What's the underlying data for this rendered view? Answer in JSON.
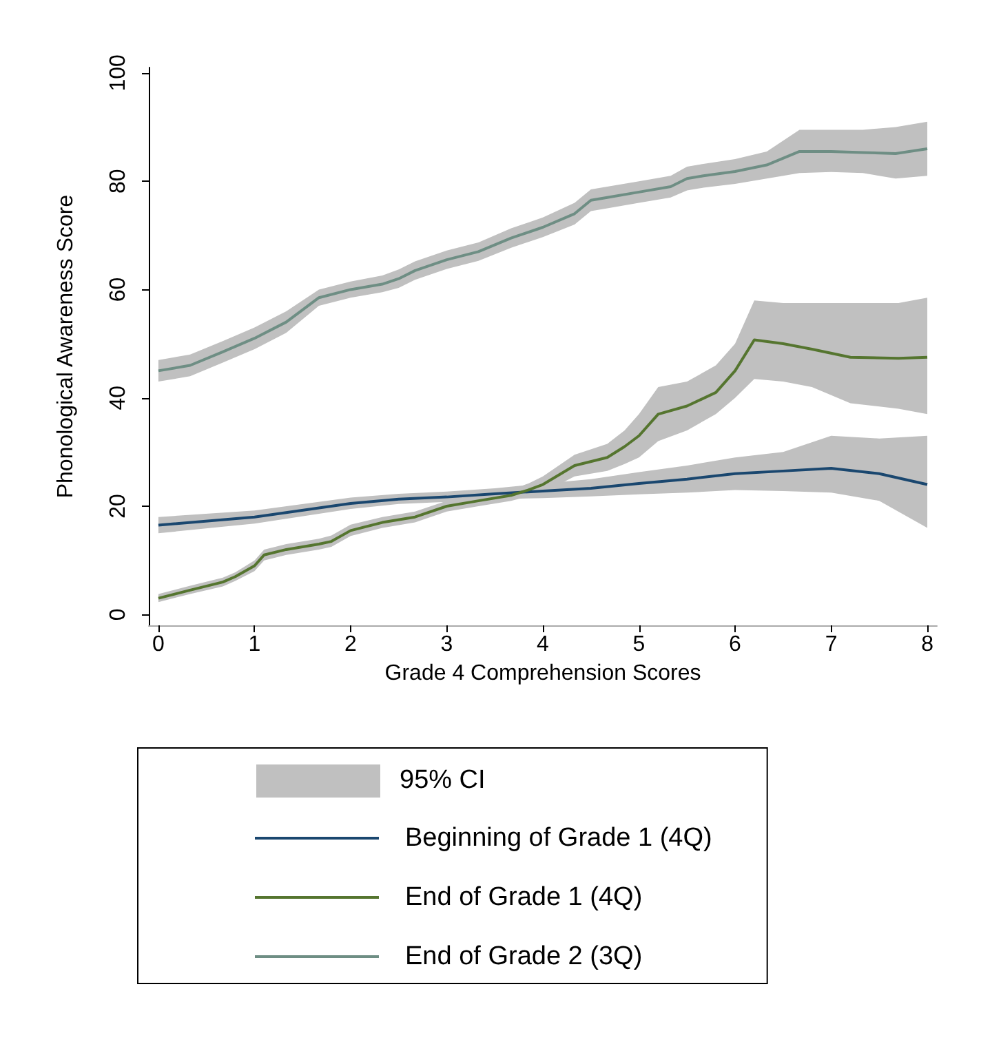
{
  "chart_data": {
    "type": "line",
    "xlabel": "Grade 4 Comprehension Scores",
    "ylabel": "Phonological Awareness Score",
    "xlim": [
      -0.1,
      8.1
    ],
    "xticks": [
      0,
      1,
      2,
      3,
      4,
      5,
      6,
      7,
      8
    ],
    "ylim": [
      -2,
      101
    ],
    "yticks": [
      0,
      20,
      40,
      60,
      80,
      100
    ],
    "grid": false,
    "legend": "bottom",
    "marker": "none",
    "line_style": "solid",
    "annotations": [
      "95% CI"
    ],
    "series": [
      {
        "name": "Beginning of Grade 1 (4Q)",
        "color": "#1a476f",
        "x": [
          0,
          1,
          2,
          2.5,
          3,
          3.5,
          4,
          4.5,
          5,
          5.5,
          6,
          6.5,
          7,
          7.5,
          8
        ],
        "values": [
          16.5,
          18,
          20.5,
          21.3,
          21.7,
          22.3,
          22.8,
          23.3,
          24.2,
          25,
          26,
          26.5,
          27,
          26,
          24
        ],
        "lower": [
          15,
          16.8,
          19.5,
          20.4,
          20.8,
          21.3,
          21.5,
          21.8,
          22.2,
          22.5,
          23,
          22.8,
          22.5,
          21,
          16
        ],
        "upper": [
          18,
          19.2,
          21.6,
          22.3,
          22.7,
          23.3,
          24.2,
          25,
          26.3,
          27.5,
          29,
          30,
          33,
          32.5,
          33
        ]
      },
      {
        "name": "End of Grade 1 (4Q)",
        "color": "#55752f",
        "x": [
          0,
          0.33,
          0.67,
          0.8,
          1,
          1.1,
          1.33,
          1.67,
          1.8,
          2,
          2.33,
          2.67,
          3,
          3.33,
          3.67,
          3.85,
          4,
          4.33,
          4.67,
          4.85,
          5,
          5.2,
          5.5,
          5.8,
          6,
          6.2,
          6.5,
          6.8,
          7.2,
          7.7,
          8
        ],
        "values": [
          3,
          4.5,
          6,
          7,
          9,
          11,
          12,
          13,
          13.5,
          15.5,
          17,
          18,
          20,
          21,
          22,
          23,
          24,
          27.5,
          29,
          31,
          33,
          37,
          38.5,
          41,
          45,
          50.7,
          50,
          49,
          47.5,
          47.3,
          47.5
        ],
        "lower": [
          2.3,
          3.8,
          5.2,
          6.2,
          8,
          10,
          11,
          12,
          12.5,
          14.5,
          16,
          17,
          19,
          20,
          21,
          21.8,
          22.5,
          25.5,
          26.5,
          27.8,
          29,
          32,
          34,
          37,
          40,
          43.5,
          43,
          42,
          39,
          38,
          37
        ],
        "upper": [
          3.8,
          5.3,
          6.8,
          7.8,
          10,
          12,
          13,
          14,
          14.6,
          16.6,
          18,
          19,
          21,
          22,
          23,
          24.2,
          25.5,
          29.5,
          31.5,
          34,
          37,
          42,
          43,
          46,
          50,
          58,
          57.5,
          57.5,
          57.5,
          57.5,
          58.5
        ]
      },
      {
        "name": "End of Grade 2 (3Q)",
        "color": "#6e8e84",
        "x": [
          0,
          0.33,
          0.67,
          1,
          1.33,
          1.67,
          2,
          2.33,
          2.5,
          2.67,
          3,
          3.33,
          3.67,
          4,
          4.33,
          4.5,
          4.67,
          5,
          5.33,
          5.5,
          5.67,
          6,
          6.33,
          6.67,
          7,
          7.33,
          7.67,
          8
        ],
        "values": [
          45,
          46,
          48.5,
          51,
          54,
          58.5,
          60,
          61,
          62,
          63.5,
          65.5,
          67,
          69.5,
          71.5,
          74,
          76.5,
          77,
          78,
          79,
          80.5,
          81,
          81.8,
          83,
          85.5,
          85.5,
          85.3,
          85.1,
          86
        ],
        "lower": [
          43,
          44,
          46.5,
          49,
          52,
          57,
          58.5,
          59.5,
          60.3,
          61.8,
          63.8,
          65.3,
          67.7,
          69.7,
          72,
          74.5,
          75,
          76,
          77,
          78.3,
          78.8,
          79.5,
          80.5,
          81.5,
          81.7,
          81.5,
          80.5,
          81
        ],
        "upper": [
          47,
          48,
          50.5,
          53,
          56,
          60,
          61.5,
          62.6,
          63.7,
          65.2,
          67.2,
          68.7,
          71.3,
          73.3,
          76,
          78.5,
          79,
          80,
          81,
          82.7,
          83.2,
          84.1,
          85.5,
          89.5,
          89.5,
          89.5,
          90,
          91
        ]
      }
    ]
  }
}
